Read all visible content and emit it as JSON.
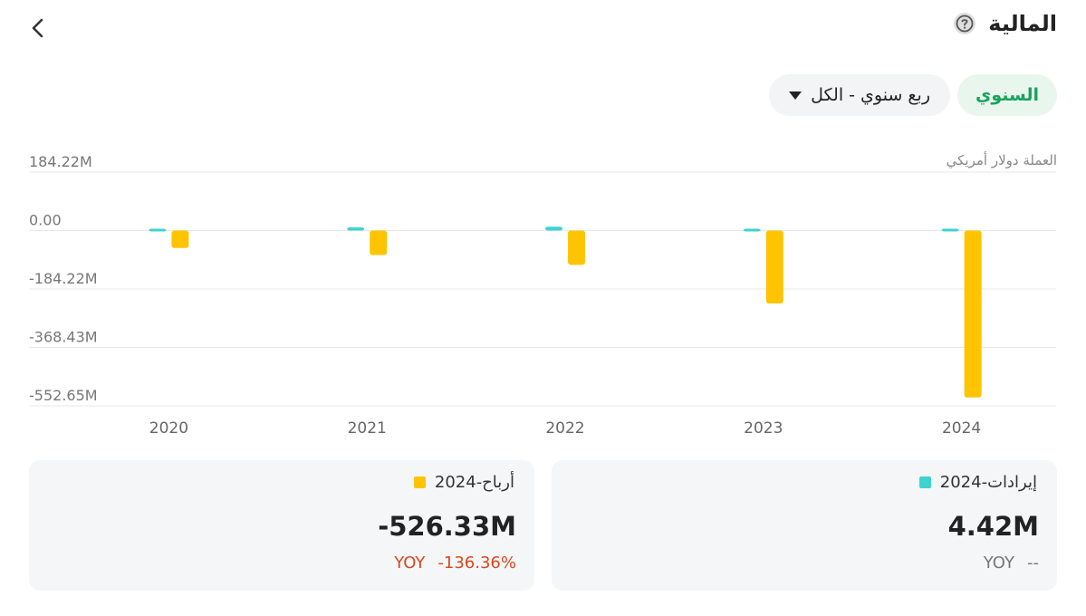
{
  "header": {
    "title": "المالية",
    "back_icon": "chevron-left-icon",
    "help_icon": "question-circle-icon"
  },
  "filters": {
    "period_toggle": "السنوي",
    "period_select": "ربع سنوي - الكل"
  },
  "chart_note": "العملة دولار أمريكي",
  "colors": {
    "revenue": "#3ed3cf",
    "profit": "#ffc400",
    "toggle_bg": "#e9f6ee",
    "toggle_text": "#19a35b",
    "yoy_negative": "#d9481e"
  },
  "chart_data": {
    "type": "bar",
    "categories": [
      "2020",
      "2021",
      "2022",
      "2023",
      "2024"
    ],
    "y_ticks": [
      "184.22M",
      "0.00",
      "-184.22M",
      "-368.43M",
      "-552.65M"
    ],
    "ylim": [
      -552.65,
      184.22
    ],
    "grid": true,
    "series": [
      {
        "name": "إيرادات",
        "color": "#3ed3cf",
        "values": [
          0,
          10,
          12,
          0,
          4.42
        ]
      },
      {
        "name": "أرباح",
        "color": "#ffc400",
        "values": [
          -55,
          -77,
          -108,
          -230,
          -526.33
        ]
      }
    ]
  },
  "cards": {
    "profit": {
      "label": "أرباح-2024",
      "value": "-526.33M",
      "yoy_label": "YOY",
      "yoy_value": "-136.36%"
    },
    "revenue": {
      "label": "إيرادات-2024",
      "value": "4.42M",
      "yoy_label": "YOY",
      "yoy_value": "--"
    }
  }
}
